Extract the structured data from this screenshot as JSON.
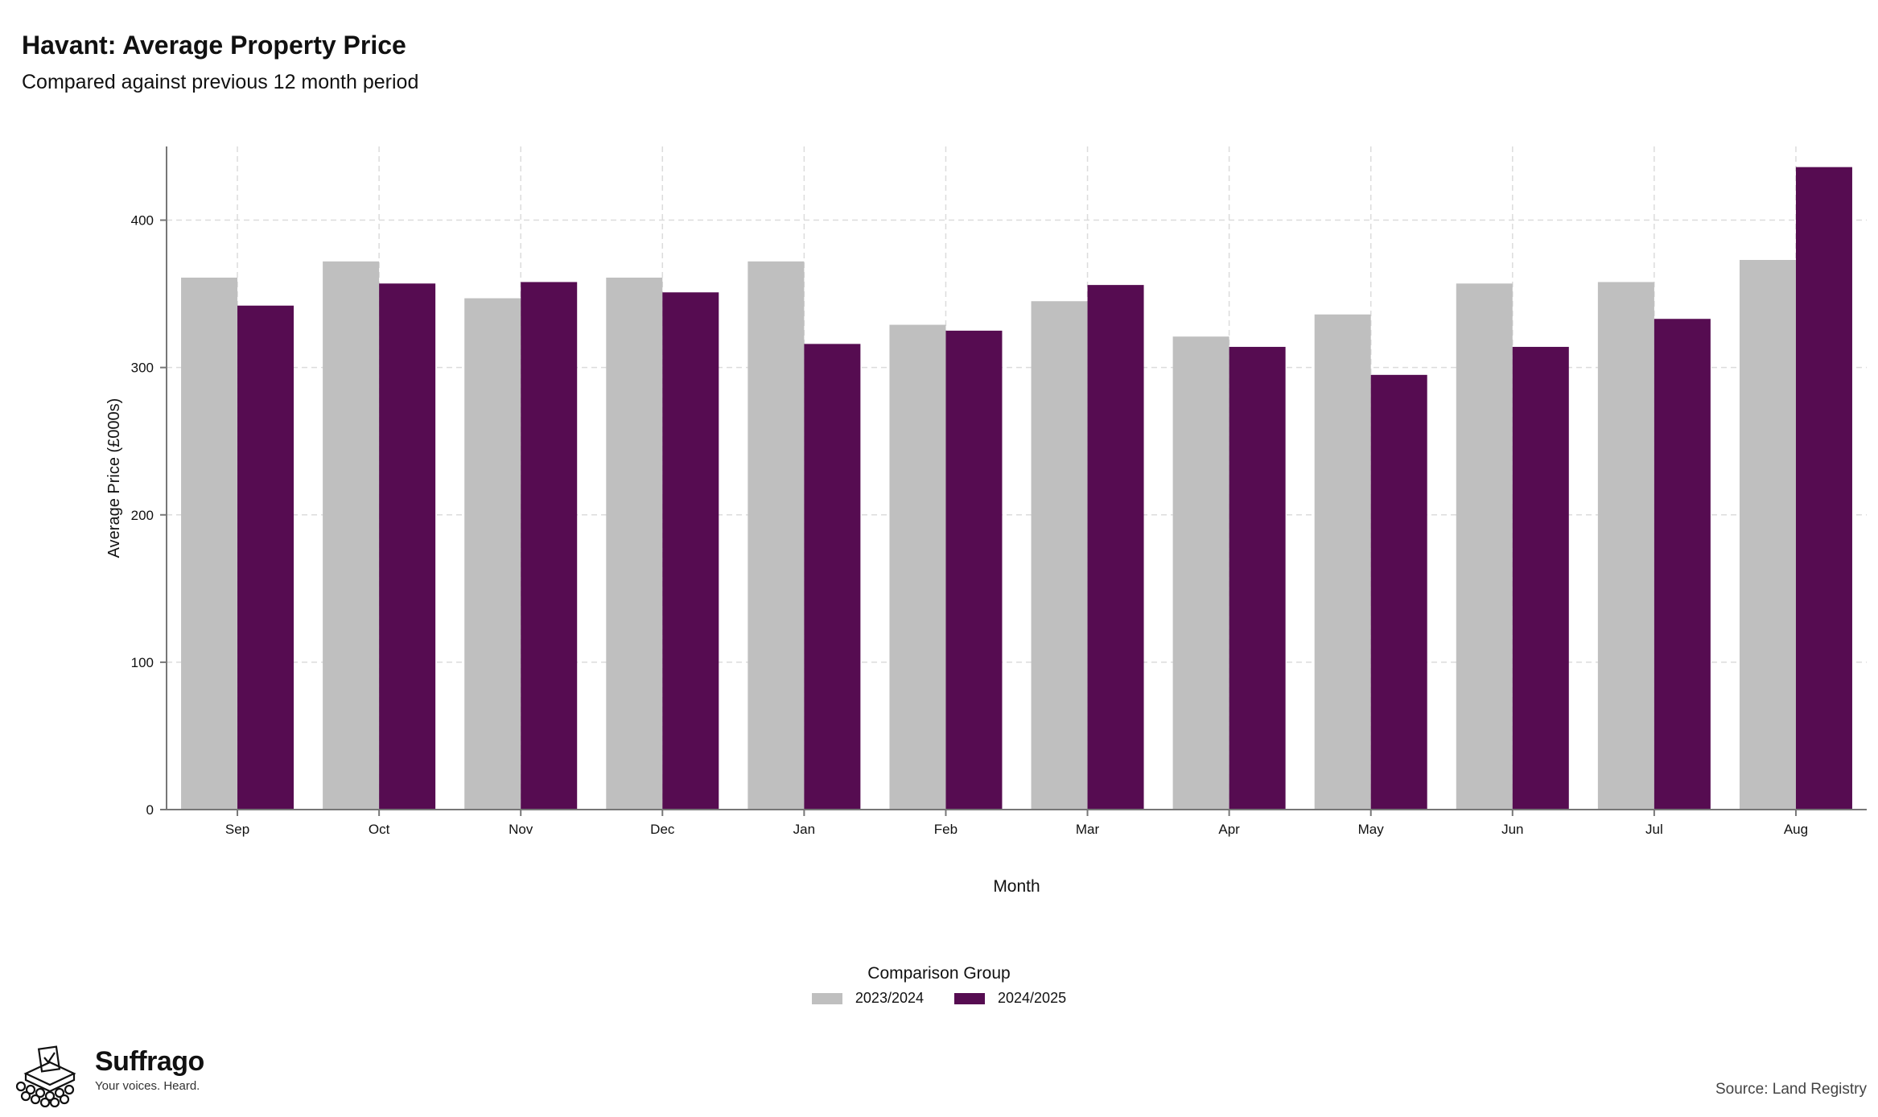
{
  "header": {
    "title": "Havant: Average Property Price",
    "subtitle": "Compared against previous 12 month period"
  },
  "chart_data": {
    "type": "bar",
    "xlabel": "Month",
    "ylabel": "Average Price (£000s)",
    "ylim": [
      0,
      450
    ],
    "yticks": [
      0,
      100,
      200,
      300,
      400
    ],
    "grid": true,
    "legend_title": "Comparison Group",
    "legend_position": "bottom",
    "categories": [
      "Sep",
      "Oct",
      "Nov",
      "Dec",
      "Jan",
      "Feb",
      "Mar",
      "Apr",
      "May",
      "Jun",
      "Jul",
      "Aug"
    ],
    "series": [
      {
        "name": "2023/2024",
        "color": "#bfbfbf",
        "values": [
          361,
          372,
          347,
          361,
          372,
          329,
          345,
          321,
          336,
          357,
          358,
          373
        ]
      },
      {
        "name": "2024/2025",
        "color": "#560c51",
        "values": [
          342,
          357,
          358,
          351,
          316,
          325,
          356,
          314,
          295,
          314,
          333,
          436
        ]
      }
    ]
  },
  "branding": {
    "name": "Suffrago",
    "tagline": "Your voices. Heard.",
    "logo_icon": "ballot-box-icon"
  },
  "footer": {
    "source": "Source: Land Registry"
  }
}
